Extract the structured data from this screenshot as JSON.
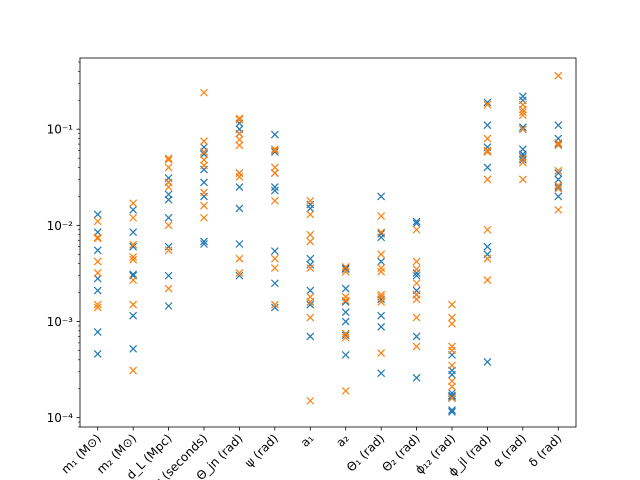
{
  "chart_data": {
    "type": "scatter",
    "yscale": "log",
    "ylim": [
      8e-05,
      0.55
    ],
    "ytick_values": [
      0.0001,
      0.001,
      0.01,
      0.1
    ],
    "ytick_labels": [
      "10⁻⁴",
      "10⁻³",
      "10⁻²",
      "10⁻¹"
    ],
    "marker": "x",
    "grid": false,
    "legend": "none",
    "categories": [
      "m₁ (M⊙)",
      "m₂ (M⊙)",
      "d_L (Mpc)",
      "t_c (seconds)",
      "Θ_jn (rad)",
      "ψ (rad)",
      "a₁",
      "a₂",
      "Θ₁ (rad)",
      "Θ₂ (rad)",
      "ϕ₁₂ (rad)",
      "ϕ_jl (rad)",
      "α (rad)",
      "δ (rad)"
    ],
    "series": [
      {
        "color": "#1f77b4",
        "values": [
          [
            0.013,
            0.0085,
            0.0055,
            0.0028,
            0.0021,
            0.00078,
            0.00046
          ],
          [
            0.0145,
            0.0085,
            0.006,
            0.0031,
            0.003,
            0.00115,
            0.00052
          ],
          [
            0.031,
            0.028,
            0.021,
            0.0185,
            0.012,
            0.006,
            0.003,
            0.00145
          ],
          [
            0.065,
            0.058,
            0.055,
            0.038,
            0.028,
            0.02,
            0.0068,
            0.0064
          ],
          [
            0.115,
            0.1,
            0.09,
            0.035,
            0.025,
            0.015,
            0.0064,
            0.003
          ],
          [
            0.088,
            0.058,
            0.035,
            0.025,
            0.023,
            0.0054,
            0.0025,
            0.0014
          ],
          [
            0.0165,
            0.015,
            0.0045,
            0.0039,
            0.0021,
            0.0016,
            0.0015,
            0.0007
          ],
          [
            0.0036,
            0.0035,
            0.0022,
            0.0016,
            0.00125,
            0.001,
            0.00072,
            0.00045
          ],
          [
            0.02,
            0.0082,
            0.0075,
            0.0042,
            0.0017,
            0.00115,
            0.00088,
            0.00029
          ],
          [
            0.011,
            0.0105,
            0.0032,
            0.003,
            0.0021,
            0.0019,
            0.0007,
            0.00026
          ],
          [
            0.00045,
            0.00031,
            0.00028,
            0.00018,
            0.00017,
            0.000165,
            0.00016,
            0.00012,
            0.000115
          ],
          [
            0.19,
            0.11,
            0.065,
            0.06,
            0.04,
            0.006,
            0.005,
            0.00038
          ],
          [
            0.22,
            0.2,
            0.105,
            0.1,
            0.062,
            0.055,
            0.052,
            0.048
          ],
          [
            0.11,
            0.08,
            0.07,
            0.035,
            0.03,
            0.025,
            0.02
          ]
        ]
      },
      {
        "color": "#ff7f0e",
        "values": [
          [
            0.011,
            0.0075,
            0.0073,
            0.0042,
            0.0032,
            0.0015,
            0.0014
          ],
          [
            0.017,
            0.012,
            0.0063,
            0.0047,
            0.0044,
            0.0027,
            0.0015,
            0.00031
          ],
          [
            0.05,
            0.048,
            0.04,
            0.028,
            0.025,
            0.01,
            0.0055,
            0.0022
          ],
          [
            0.24,
            0.075,
            0.058,
            0.048,
            0.042,
            0.022,
            0.016,
            0.012
          ],
          [
            0.13,
            0.125,
            0.09,
            0.078,
            0.068,
            0.035,
            0.032,
            0.0045,
            0.0032
          ],
          [
            0.062,
            0.06,
            0.04,
            0.035,
            0.018,
            0.0045,
            0.0036,
            0.0015
          ],
          [
            0.018,
            0.013,
            0.008,
            0.0068,
            0.0036,
            0.0018,
            0.0016,
            0.0011,
            0.00015
          ],
          [
            0.0037,
            0.0033,
            0.0018,
            0.00165,
            0.00075,
            0.00068,
            0.00019
          ],
          [
            0.0125,
            0.0085,
            0.005,
            0.0036,
            0.0033,
            0.0019,
            0.0018,
            0.0016,
            0.00047
          ],
          [
            0.009,
            0.0042,
            0.0035,
            0.0025,
            0.0019,
            0.0017,
            0.0011,
            0.00055
          ],
          [
            0.0015,
            0.0011,
            0.00095,
            0.00055,
            0.0005,
            0.00035,
            0.00024,
            0.00021,
            0.00016
          ],
          [
            0.18,
            0.08,
            0.06,
            0.058,
            0.03,
            0.009,
            0.0045,
            0.0027
          ],
          [
            0.18,
            0.16,
            0.15,
            0.14,
            0.1,
            0.05,
            0.045,
            0.03
          ],
          [
            0.36,
            0.072,
            0.068,
            0.037,
            0.026,
            0.024,
            0.0145
          ]
        ]
      }
    ]
  }
}
